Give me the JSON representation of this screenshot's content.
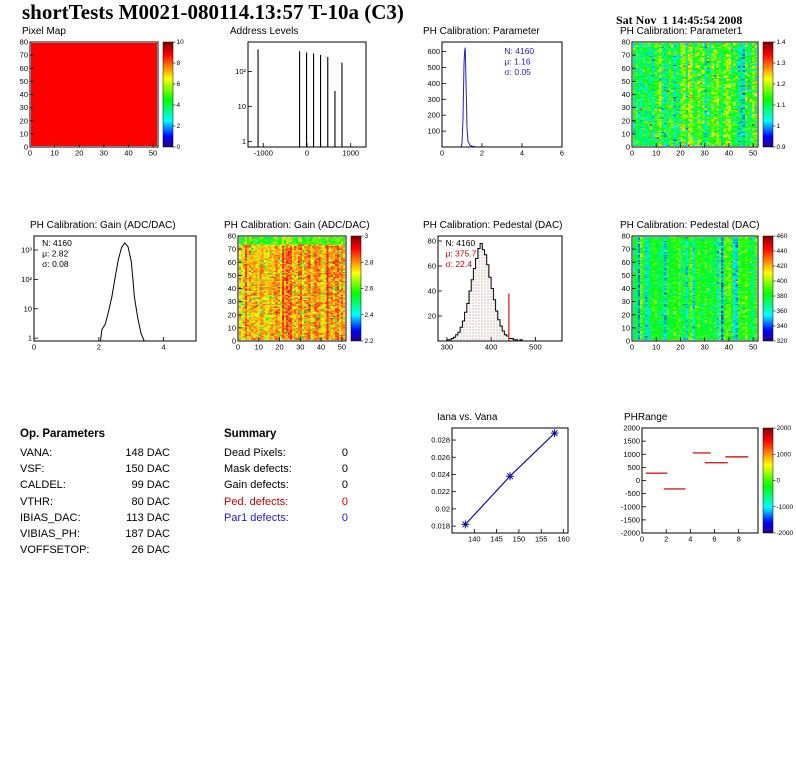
{
  "header": {
    "title": "shortTests M0021-080114.13:57 T-10a (C3)",
    "timestamp": "Sat Nov  1 14:45:54 2008"
  },
  "op_parameters": {
    "heading": "Op. Parameters",
    "rows": [
      {
        "label": "VANA:",
        "value": "148 DAC"
      },
      {
        "label": "VSF:",
        "value": "150 DAC"
      },
      {
        "label": "CALDEL:",
        "value": "99 DAC"
      },
      {
        "label": "VTHR:",
        "value": "80 DAC"
      },
      {
        "label": "IBIAS_DAC:",
        "value": "113 DAC"
      },
      {
        "label": "VIBIAS_PH:",
        "value": "187 DAC"
      },
      {
        "label": "VOFFSETOP:",
        "value": "26 DAC"
      }
    ]
  },
  "summary": {
    "heading": "Summary",
    "rows": [
      {
        "label": "Dead Pixels:",
        "value": "0",
        "color": "#000000"
      },
      {
        "label": "Mask defects:",
        "value": "0",
        "color": "#000000"
      },
      {
        "label": "Gain defects:",
        "value": "0",
        "color": "#000000"
      },
      {
        "label": "Ped. defects:",
        "value": "0",
        "color": "#cc0000"
      },
      {
        "label": "Par1 defects:",
        "value": "0",
        "color": "#2020cc"
      }
    ]
  },
  "chart_data": [
    {
      "id": "pixel_map",
      "type": "heatmap",
      "title": "Pixel Map",
      "x_range": [
        0,
        52
      ],
      "x_ticks": [
        0,
        10,
        20,
        30,
        40,
        50
      ],
      "y_range": [
        0,
        80
      ],
      "y_ticks": [
        0,
        10,
        20,
        30,
        40,
        50,
        60,
        70,
        80
      ],
      "fill": "uniform",
      "uniform_color": "#ff0000",
      "colorbar": {
        "labels": [
          "10",
          "8",
          "6",
          "4",
          "2",
          "0"
        ]
      }
    },
    {
      "id": "address_levels",
      "type": "spikes",
      "title": "Address Levels",
      "x_range": [
        -1350,
        1350
      ],
      "x_ticks": [
        -1000,
        0,
        1000
      ],
      "y_log": true,
      "y_range": [
        0.7,
        700
      ],
      "y_tick_labels": [
        {
          "v": 1,
          "t": "1"
        },
        {
          "v": 10,
          "t": "10"
        },
        {
          "v": 100,
          "t": "10²"
        }
      ],
      "color": "#000000",
      "spikes": [
        [
          -1120,
          430
        ],
        [
          -170,
          380
        ],
        [
          -10,
          350
        ],
        [
          150,
          330
        ],
        [
          310,
          300
        ],
        [
          475,
          260
        ],
        [
          640,
          28
        ],
        [
          800,
          180
        ]
      ]
    },
    {
      "id": "ph_calibration_parameter",
      "type": "hist",
      "title": "PH Calibration: Parameter",
      "x_range": [
        0,
        6
      ],
      "x_ticks": [
        0,
        2,
        4,
        6
      ],
      "y_range": [
        0,
        660
      ],
      "y_ticks": [
        100,
        200,
        300,
        400,
        500,
        600
      ],
      "line_color": "#2020cc",
      "points": [
        [
          0,
          0
        ],
        [
          0.95,
          0
        ],
        [
          1.0,
          25
        ],
        [
          1.05,
          180
        ],
        [
          1.1,
          520
        ],
        [
          1.13,
          600
        ],
        [
          1.16,
          625
        ],
        [
          1.2,
          420
        ],
        [
          1.25,
          120
        ],
        [
          1.3,
          35
        ],
        [
          1.4,
          10
        ],
        [
          1.55,
          3
        ],
        [
          1.7,
          0
        ],
        [
          6,
          0
        ]
      ],
      "stats": [
        {
          "text": "N: 4160",
          "color": "#2020cc"
        },
        {
          "text": "μ: 1.16",
          "color": "#2020cc"
        },
        {
          "text": "σ: 0.05",
          "color": "#2020cc"
        }
      ]
    },
    {
      "id": "ph_calibration_parameter1",
      "type": "heatmap",
      "title": "PH Calibration: Parameter1",
      "x_range": [
        0,
        52
      ],
      "x_ticks": [
        0,
        10,
        20,
        30,
        40,
        50
      ],
      "y_range": [
        0,
        80
      ],
      "y_ticks": [
        0,
        10,
        20,
        30,
        40,
        50,
        60,
        70,
        80
      ],
      "fill": "noise",
      "noise": {
        "seed": 7,
        "mean": 1.16,
        "sigma": 0.06,
        "col_sigma": 0.05,
        "outlier_frac": 0.03,
        "outlier_lo": 0.92,
        "outlier_hi": 1.45,
        "vmin": 0.9,
        "vmax": 1.45
      },
      "colorbar": {
        "labels": [
          "1.4",
          "1.3",
          "1.2",
          "1.1",
          "1",
          "0.9"
        ]
      }
    },
    {
      "id": "ph_calibration_gain_hist",
      "type": "hist",
      "title": "PH Calibration: Gain (ADC/DAC)",
      "x_range": [
        0,
        5
      ],
      "x_ticks": [
        0,
        2,
        4
      ],
      "y_log": true,
      "y_range": [
        0.8,
        3000
      ],
      "y_tick_labels": [
        {
          "v": 1,
          "t": "1"
        },
        {
          "v": 10,
          "t": "10"
        },
        {
          "v": 100,
          "t": "10²"
        },
        {
          "v": 1000,
          "t": "10³"
        }
      ],
      "line_color": "#000000",
      "points": [
        [
          0,
          0.8
        ],
        [
          2.05,
          0.8
        ],
        [
          2.1,
          2
        ],
        [
          2.2,
          3
        ],
        [
          2.3,
          8
        ],
        [
          2.4,
          25
        ],
        [
          2.5,
          110
        ],
        [
          2.6,
          450
        ],
        [
          2.7,
          1200
        ],
        [
          2.8,
          1750
        ],
        [
          2.9,
          1300
        ],
        [
          3.0,
          420
        ],
        [
          3.05,
          110
        ],
        [
          3.1,
          25
        ],
        [
          3.2,
          5
        ],
        [
          3.3,
          1.5
        ],
        [
          3.4,
          0.8
        ],
        [
          5,
          0.8
        ]
      ],
      "stats": [
        {
          "text": "N: 4160",
          "color": "#000000"
        },
        {
          "text": "μ: 2.82",
          "color": "#000000"
        },
        {
          "text": "σ: 0.08",
          "color": "#000000"
        }
      ]
    },
    {
      "id": "ph_calibration_gain_map",
      "type": "heatmap",
      "title": "PH Calibration: Gain (ADC/DAC)",
      "x_range": [
        0,
        52
      ],
      "x_ticks": [
        0,
        10,
        20,
        30,
        40,
        50
      ],
      "y_range": [
        0,
        80
      ],
      "y_ticks": [
        0,
        10,
        20,
        30,
        40,
        50,
        60,
        70,
        80
      ],
      "fill": "noise",
      "noise": {
        "seed": 13,
        "mean": 2.88,
        "sigma": 0.055,
        "col_sigma": 0.04,
        "top_rows_delta": -0.22,
        "outlier_frac": 0.04,
        "outlier_lo": 2.45,
        "outlier_hi": 2.7,
        "vmin": 2.2,
        "vmax": 3.0
      },
      "colorbar": {
        "labels": [
          "3",
          "2.8",
          "2.6",
          "2.4",
          "2.2"
        ]
      }
    },
    {
      "id": "ph_calibration_pedestal_hist",
      "type": "hist",
      "title": "PH Calibration: Pedestal (DAC)",
      "x_range": [
        280,
        560
      ],
      "x_ticks": [
        300,
        400,
        500
      ],
      "y_range": [
        0,
        84
      ],
      "y_ticks": [
        20,
        40,
        60,
        80
      ],
      "line_color": "#000000",
      "fill_dots": true,
      "bins": {
        "x0": 300,
        "dx": 5,
        "heights": [
          1,
          1,
          2,
          3,
          5,
          7,
          11,
          16,
          23,
          30,
          40,
          49,
          58,
          66,
          74,
          78,
          73,
          69,
          61,
          51,
          42,
          33,
          24,
          17,
          12,
          8,
          5,
          4,
          2,
          2,
          1,
          1,
          0,
          1
        ]
      },
      "red_line": {
        "x": 440,
        "h": 38
      },
      "stats": [
        {
          "text": "N: 4160",
          "color": "#000000"
        },
        {
          "text": "μ: 375.7",
          "color": "#cc0000"
        },
        {
          "text": "σ: 22.4",
          "color": "#cc0000"
        }
      ]
    },
    {
      "id": "ph_calibration_pedestal_map",
      "type": "heatmap",
      "title": "PH Calibration: Pedestal (DAC)",
      "x_range": [
        0,
        52
      ],
      "x_ticks": [
        0,
        10,
        20,
        30,
        40,
        50
      ],
      "y_range": [
        0,
        80
      ],
      "y_ticks": [
        0,
        10,
        20,
        30,
        40,
        50,
        60,
        70,
        80
      ],
      "fill": "noise",
      "noise": {
        "seed": 29,
        "mean": 378,
        "sigma": 10,
        "col_sigma": 8,
        "stripe_frac": 0.18,
        "stripe_delta": -42,
        "outlier_frac": 0.02,
        "outlier_lo": 320,
        "outlier_hi": 430,
        "vmin": 300,
        "vmax": 460
      },
      "colorbar": {
        "labels": [
          "460",
          "440",
          "420",
          "400",
          "380",
          "360",
          "340",
          "320"
        ]
      }
    },
    {
      "id": "iana_vs_vana",
      "type": "line",
      "title": "Iana vs. Vana",
      "x_range": [
        135,
        161
      ],
      "x_ticks": [
        140,
        145,
        150,
        155,
        160
      ],
      "y_range": [
        0.0172,
        0.0294
      ],
      "y_ticks": [
        0.018,
        0.02,
        0.022,
        0.024,
        0.026,
        0.028
      ],
      "y_tick_labels": [
        "0.018",
        "0.02",
        "0.022",
        "0.024",
        "0.026",
        "0.028"
      ],
      "line_color": "#10109a",
      "marker": "star",
      "points": [
        [
          138,
          0.0182
        ],
        [
          148,
          0.0238
        ],
        [
          158,
          0.0288
        ]
      ]
    },
    {
      "id": "phrange",
      "type": "segments",
      "title": "PHRange",
      "x_range": [
        0,
        9.6
      ],
      "x_ticks": [
        0,
        2,
        4,
        6,
        8
      ],
      "y_range": [
        -2000,
        2000
      ],
      "y_ticks": [
        2000,
        1500,
        1000,
        500,
        0,
        -500,
        -1000,
        -1500,
        -2000
      ],
      "color": "#d02020",
      "segments": [
        {
          "x1": 0.3,
          "x2": 2.1,
          "y": 280
        },
        {
          "x1": 1.8,
          "x2": 3.6,
          "y": -320
        },
        {
          "x1": 4.2,
          "x2": 5.7,
          "y": 1050
        },
        {
          "x1": 5.2,
          "x2": 7.1,
          "y": 680
        },
        {
          "x1": 6.9,
          "x2": 8.8,
          "y": 900
        }
      ],
      "colorbar": {
        "labels": [
          "2000",
          "1000",
          "0",
          "-1000",
          "-2000"
        ]
      }
    }
  ]
}
